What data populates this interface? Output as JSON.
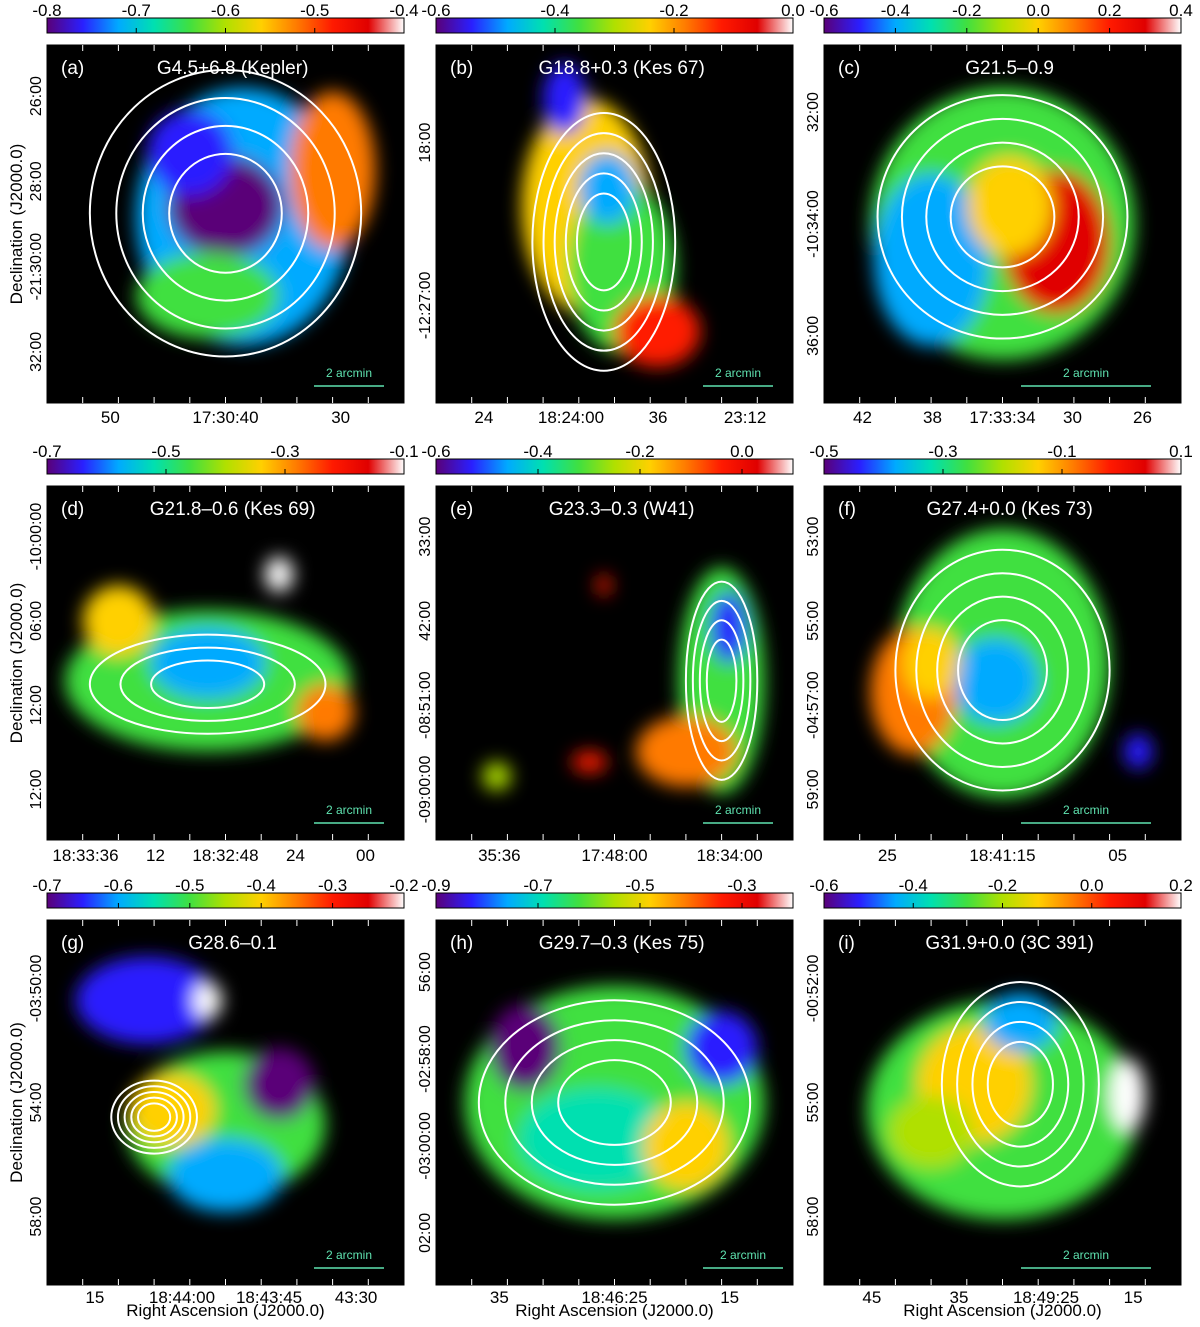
{
  "figure": {
    "axis_titles": {
      "ylabel": "Declination (J2000.0)",
      "xlabel": "Right Ascension (J2000.0)"
    },
    "scalebar_label": "2 arcmin",
    "colormap": [
      "#5a0078",
      "#2a1fff",
      "#00aaff",
      "#00e0b0",
      "#40e040",
      "#b0e000",
      "#ffd000",
      "#ff7a00",
      "#ff1a00",
      "#e00000",
      "#ffffff"
    ],
    "palette": {
      "background": "#000000",
      "contour": "#ffffff",
      "scalebar": "#5fe3b0"
    }
  },
  "chart_data": [
    {
      "panel": "(a)",
      "type": "heatmap",
      "title": "G4.5+6.8  (Kepler)",
      "colorbar": {
        "ticks": [
          "-0.8",
          "-0.7",
          "-0.6",
          "-0.5",
          "-0.4"
        ],
        "range": [
          -0.8,
          -0.4
        ]
      },
      "y_ticks": [
        "26:00",
        "28:00",
        "-21:30:00",
        "32:00"
      ],
      "x_ticks": [
        "50",
        "17:30:40",
        "30"
      ],
      "ylabel": "Declination (J2000.0)",
      "xlabel": "",
      "contour_count": 4,
      "dominant_colors": [
        "#40e040",
        "#5a0078"
      ]
    },
    {
      "panel": "(b)",
      "type": "heatmap",
      "title": "G18.8+0.3  (Kes 67)",
      "colorbar": {
        "ticks": [
          "-0.6",
          "-0.4",
          "-0.2",
          "0.0"
        ],
        "range": [
          -0.6,
          0.0
        ]
      },
      "y_ticks": [
        "18:00",
        "-12:27:00"
      ],
      "x_ticks": [
        "24",
        "18:24:00",
        "36",
        "23:12"
      ],
      "ylabel": "",
      "xlabel": "",
      "contour_count": 6,
      "dominant_colors": [
        "#ffd000",
        "#40e040",
        "#ff1a00"
      ]
    },
    {
      "panel": "(c)",
      "type": "heatmap",
      "title": "G21.5–0.9",
      "colorbar": {
        "ticks": [
          "-0.6",
          "-0.4",
          "-0.2",
          "0.0",
          "0.2",
          "0.4"
        ],
        "range": [
          -0.6,
          0.4
        ]
      },
      "y_ticks": [
        "32:00",
        "-10:34:00",
        "36:00"
      ],
      "x_ticks": [
        "42",
        "38",
        "17:33:34",
        "30",
        "26"
      ],
      "ylabel": "",
      "xlabel": "",
      "contour_count": 4,
      "dominant_colors": [
        "#00aaff",
        "#ffd000",
        "#e00000"
      ]
    },
    {
      "panel": "(d)",
      "type": "heatmap",
      "title": "G21.8–0.6  (Kes 69)",
      "colorbar": {
        "ticks": [
          "-0.7",
          "-0.5",
          "-0.3",
          "-0.1"
        ],
        "range": [
          -0.7,
          -0.1
        ]
      },
      "y_ticks": [
        "-10:00:00",
        "06:00",
        "12:00",
        "12:00"
      ],
      "x_ticks": [
        "18:33:36",
        "12",
        "18:32:48",
        "24",
        "00"
      ],
      "ylabel": "Declination (J2000.0)",
      "xlabel": "",
      "contour_count": 3,
      "dominant_colors": [
        "#40e040",
        "#00aaff",
        "#ffd000"
      ]
    },
    {
      "panel": "(e)",
      "type": "heatmap",
      "title": "G23.3–0.3  (W41)",
      "colorbar": {
        "ticks": [
          "-0.6",
          "-0.4",
          "-0.2",
          "0.0"
        ],
        "range": [
          -0.6,
          0.1
        ]
      },
      "y_ticks": [
        "33:00",
        "42:00",
        "-08:51:00",
        "-09:00:00"
      ],
      "x_ticks": [
        "35:36",
        "17:48:00",
        "18:34:00"
      ],
      "ylabel": "",
      "xlabel": "",
      "contour_count": 5,
      "dominant_colors": [
        "#40e040",
        "#b0e000",
        "#2a1fff"
      ]
    },
    {
      "panel": "(f)",
      "type": "heatmap",
      "title": "G27.4+0.0  (Kes 73)",
      "colorbar": {
        "ticks": [
          "-0.5",
          "-0.3",
          "-0.1",
          "0.1"
        ],
        "range": [
          -0.5,
          0.1
        ]
      },
      "y_ticks": [
        "53:00",
        "55:00",
        "-04:57:00",
        "59:00"
      ],
      "x_ticks": [
        "25",
        "18:41:15",
        "05"
      ],
      "ylabel": "",
      "xlabel": "",
      "contour_count": 4,
      "dominant_colors": [
        "#40e040",
        "#ff7a00",
        "#00aaff"
      ]
    },
    {
      "panel": "(g)",
      "type": "heatmap",
      "title": "G28.6–0.1",
      "colorbar": {
        "ticks": [
          "-0.7",
          "-0.6",
          "-0.5",
          "-0.4",
          "-0.3",
          "-0.2"
        ],
        "range": [
          -0.7,
          -0.2
        ]
      },
      "y_ticks": [
        "-03:50:00",
        "54:00",
        "58:00"
      ],
      "x_ticks": [
        "15",
        "18:44:00",
        "18:43:45",
        "43:30"
      ],
      "ylabel": "Declination (J2000.0)",
      "xlabel": "Right Ascension (J2000.0)",
      "contour_count": 5,
      "dominant_colors": [
        "#40e040",
        "#ffd000",
        "#2a1fff"
      ]
    },
    {
      "panel": "(h)",
      "type": "heatmap",
      "title": "G29.7–0.3  (Kes 75)",
      "colorbar": {
        "ticks": [
          "-0.9",
          "-0.7",
          "-0.5",
          "-0.3"
        ],
        "range": [
          -0.9,
          -0.2
        ]
      },
      "y_ticks": [
        "56:00",
        "-02:58:00",
        "-03:00:00",
        "02:00"
      ],
      "x_ticks": [
        "35",
        "18:46:25",
        "15"
      ],
      "ylabel": "",
      "xlabel": "Right Ascension (J2000.0)",
      "contour_count": 4,
      "dominant_colors": [
        "#40e040",
        "#00e0b0",
        "#ffd000"
      ]
    },
    {
      "panel": "(i)",
      "type": "heatmap",
      "title": "G31.9+0.0  (3C 391)",
      "colorbar": {
        "ticks": [
          "-0.6",
          "-0.4",
          "-0.2",
          "0.0",
          "0.2"
        ],
        "range": [
          -0.6,
          0.2
        ]
      },
      "y_ticks": [
        "-00:52:00",
        "55:00",
        "58:00"
      ],
      "x_ticks": [
        "45",
        "35",
        "18:49:25",
        "15"
      ],
      "ylabel": "",
      "xlabel": "Right Ascension (J2000.0)",
      "contour_count": 4,
      "dominant_colors": [
        "#40e040",
        "#ffd000",
        "#00aaff"
      ]
    }
  ]
}
